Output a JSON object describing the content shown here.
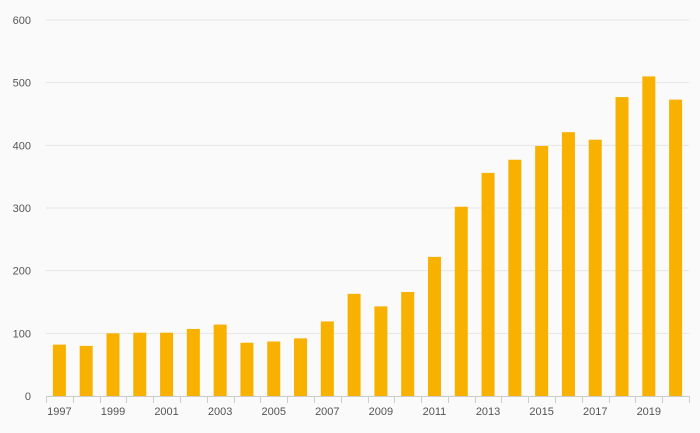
{
  "chart_data": {
    "type": "bar",
    "title": "",
    "xlabel": "",
    "ylabel": "",
    "categories": [
      "1997",
      "1998",
      "1999",
      "2000",
      "2001",
      "2002",
      "2003",
      "2004",
      "2005",
      "2006",
      "2007",
      "2008",
      "2009",
      "2010",
      "2011",
      "2012",
      "2013",
      "2014",
      "2015",
      "2016",
      "2017",
      "2018",
      "2019",
      "2020"
    ],
    "values": [
      82,
      80,
      100,
      101,
      101,
      107,
      114,
      85,
      87,
      92,
      119,
      163,
      143,
      166,
      222,
      302,
      356,
      377,
      399,
      421,
      409,
      477,
      510,
      473
    ],
    "x_tick_labels": [
      "1997",
      "1999",
      "2001",
      "2003",
      "2005",
      "2007",
      "2009",
      "2011",
      "2013",
      "2015",
      "2017",
      "2019"
    ],
    "y_ticks": [
      0,
      100,
      200,
      300,
      400,
      500,
      600
    ],
    "ylim": [
      0,
      600
    ],
    "grid": true,
    "legend": "none",
    "colors": {
      "bar": "#f9b100",
      "grid": "#e6e6e6",
      "axis": "#cccccc",
      "text": "#555555",
      "background": "#fafafa"
    }
  }
}
